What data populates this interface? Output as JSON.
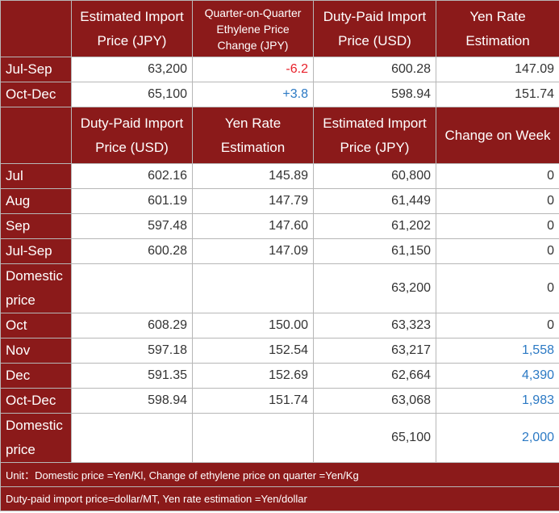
{
  "quarterly": {
    "headers": [
      "Estimated Import Price (JPY)",
      "Quarter-on-Quarter Ethylene Price Change (JPY)",
      "Duty-Paid Import Price (USD)",
      "Yen Rate Estimation"
    ],
    "rows": [
      {
        "label": "Jul-Sep",
        "values": [
          "63,200",
          "-6.2",
          "600.28",
          "147.09"
        ]
      },
      {
        "label": "Oct-Dec",
        "values": [
          "65,100",
          "+3.8",
          "598.94",
          "151.74"
        ]
      }
    ]
  },
  "monthly": {
    "headers": [
      "Duty-Paid Import Price (USD)",
      "Yen Rate Estimation",
      "Estimated Import Price (JPY)",
      "Change on Week"
    ],
    "rows": [
      {
        "label": "Jul",
        "values": [
          "602.16",
          "145.89",
          "60,800",
          "0"
        ]
      },
      {
        "label": "Aug",
        "values": [
          "601.19",
          "147.79",
          "61,449",
          "0"
        ]
      },
      {
        "label": "Sep",
        "values": [
          "597.48",
          "147.60",
          "61,202",
          "0"
        ]
      },
      {
        "label": "Jul-Sep",
        "values": [
          "600.28",
          "147.09",
          "61,150",
          "0"
        ]
      },
      {
        "label": "Domestic price",
        "values": [
          "",
          "",
          "63,200",
          "0"
        ]
      },
      {
        "label": "Oct",
        "values": [
          "608.29",
          "150.00",
          "63,323",
          "0"
        ]
      },
      {
        "label": "Nov",
        "values": [
          "597.18",
          "152.54",
          "63,217",
          "1,558"
        ]
      },
      {
        "label": "Dec",
        "values": [
          "591.35",
          "152.69",
          "62,664",
          "4,390"
        ]
      },
      {
        "label": "Oct-Dec",
        "values": [
          "598.94",
          "151.74",
          "63,068",
          "1,983"
        ]
      },
      {
        "label": "Domestic price",
        "values": [
          "",
          "",
          "65,100",
          "2,000"
        ]
      }
    ]
  },
  "notes": {
    "unit": "Unit：Domestic price =Yen/Kl, Change of ethylene price on quarter =Yen/Kg",
    "duty": "Duty-paid import price=dollar/MT, Yen rate estimation =Yen/dollar"
  },
  "colors": {
    "header_bg": "#8b1a1a",
    "negative": "#e8202a",
    "positive": "#2b79c4",
    "border": "#b7b7b7"
  }
}
